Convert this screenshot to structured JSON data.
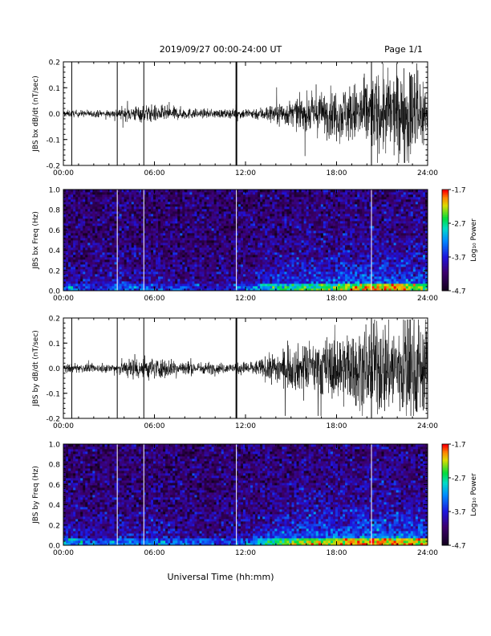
{
  "header": {
    "title": "2019/09/27  00:00-24:00 UT",
    "page": "Page 1/1"
  },
  "footer": {
    "xlabel": "Universal Time (hh:mm)"
  },
  "chart_data": [
    {
      "type": "line",
      "ylabel": "JBS bx dB/dt (nT/sec)",
      "xlim": [
        0,
        24
      ],
      "ylim": [
        -0.2,
        0.2
      ],
      "xticks": [
        "00:00",
        "06:00",
        "12:00",
        "18:00",
        "24:00"
      ],
      "yticks": [
        "-0.2",
        "-0.1",
        "0.0",
        "0.1",
        "0.2"
      ],
      "gaps_hours": [
        0.55,
        3.55,
        5.3,
        11.4,
        20.3
      ],
      "envelope": {
        "hours": [
          0,
          3,
          4,
          5,
          6,
          9,
          11,
          13,
          14,
          15,
          16,
          17,
          18,
          19,
          20,
          21,
          22,
          23,
          24
        ],
        "amplitude": [
          0.008,
          0.008,
          0.015,
          0.02,
          0.02,
          0.01,
          0.01,
          0.015,
          0.025,
          0.03,
          0.04,
          0.05,
          0.06,
          0.07,
          0.08,
          0.1,
          0.1,
          0.12,
          0.08
        ]
      }
    },
    {
      "type": "heatmap",
      "ylabel": "JBS bx Freq (Hz)",
      "xlim": [
        0,
        24
      ],
      "ylim": [
        0,
        1
      ],
      "xticks": [
        "00:00",
        "06:00",
        "12:00",
        "18:00",
        "24:00"
      ],
      "yticks": [
        "0.0",
        "0.2",
        "0.4",
        "0.6",
        "0.8",
        "1.0"
      ],
      "gaps_hours": [
        3.55,
        5.3,
        11.4,
        20.3
      ],
      "colorbar": {
        "label": "Log₁₀ Power",
        "range": [
          -4.7,
          -1.7
        ],
        "ticks": [
          "-4.7",
          "-3.7",
          "-2.7",
          "-1.7"
        ]
      },
      "activity": {
        "hours": [
          0,
          2,
          4,
          6,
          10,
          12,
          14,
          16,
          18,
          20,
          22,
          24
        ],
        "level": [
          0.3,
          0.2,
          0.3,
          0.25,
          0.15,
          0.25,
          0.45,
          0.55,
          0.6,
          0.7,
          0.7,
          0.6
        ]
      }
    },
    {
      "type": "line",
      "ylabel": "JBS by dB/dt (nT/sec)",
      "xlim": [
        0,
        24
      ],
      "ylim": [
        -0.2,
        0.2
      ],
      "xticks": [
        "00:00",
        "06:00",
        "12:00",
        "18:00",
        "24:00"
      ],
      "yticks": [
        "-0.2",
        "-0.1",
        "0.0",
        "0.1",
        "0.2"
      ],
      "gaps_hours": [
        0.55,
        3.55,
        5.3,
        11.4,
        20.3
      ],
      "envelope": {
        "hours": [
          0,
          3,
          4,
          5,
          6,
          9,
          11,
          13,
          14,
          15,
          16,
          17,
          18,
          19,
          20,
          21,
          22,
          23,
          24
        ],
        "amplitude": [
          0.01,
          0.01,
          0.02,
          0.03,
          0.025,
          0.015,
          0.012,
          0.02,
          0.04,
          0.05,
          0.06,
          0.07,
          0.08,
          0.09,
          0.1,
          0.12,
          0.11,
          0.15,
          0.1
        ]
      }
    },
    {
      "type": "heatmap",
      "ylabel": "JBS by Freq (Hz)",
      "xlim": [
        0,
        24
      ],
      "ylim": [
        0,
        1
      ],
      "xticks": [
        "00:00",
        "06:00",
        "12:00",
        "18:00",
        "24:00"
      ],
      "yticks": [
        "0.0",
        "0.2",
        "0.4",
        "0.6",
        "0.8",
        "1.0"
      ],
      "gaps_hours": [
        3.55,
        5.3,
        11.4,
        20.3
      ],
      "colorbar": {
        "label": "Log₁₀ Power",
        "range": [
          -4.7,
          -1.7
        ],
        "ticks": [
          "-4.7",
          "-3.7",
          "-2.7",
          "-1.7"
        ]
      },
      "activity": {
        "hours": [
          0,
          2,
          4,
          6,
          10,
          12,
          14,
          16,
          18,
          20,
          22,
          24
        ],
        "level": [
          0.35,
          0.25,
          0.35,
          0.3,
          0.2,
          0.3,
          0.55,
          0.65,
          0.7,
          0.75,
          0.75,
          0.65
        ]
      }
    }
  ]
}
